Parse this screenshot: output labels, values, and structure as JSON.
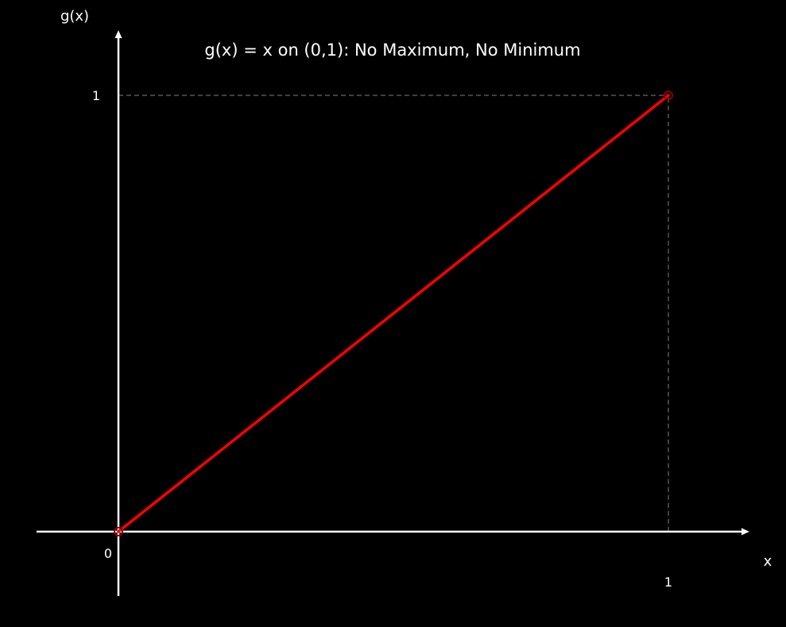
{
  "chart_data": {
    "type": "line",
    "title": "g(x) = x on (0,1): No Maximum, No Minimum",
    "xlabel": "x",
    "ylabel": "g(x)",
    "xlim": [
      -0.15,
      1.15
    ],
    "ylim": [
      -0.15,
      1.13
    ],
    "x_ticks": [
      {
        "value": 1,
        "label": "1"
      }
    ],
    "y_ticks": [
      {
        "value": 1,
        "label": "1"
      }
    ],
    "origin_label": "0",
    "grid": false,
    "series": [
      {
        "x": [
          0,
          1
        ],
        "y": [
          0,
          1
        ],
        "color": "#ff0000",
        "open_endpoints": [
          [
            0,
            0
          ],
          [
            1,
            1
          ]
        ]
      }
    ],
    "reference_lines": [
      {
        "type": "horizontal",
        "y": 1,
        "x_from": 0,
        "x_to": 1,
        "style": "dashed",
        "color": "#555555"
      },
      {
        "type": "vertical",
        "x": 1,
        "y_from": 0,
        "y_to": 1,
        "style": "dashed",
        "color": "#555555"
      }
    ]
  },
  "colors": {
    "background": "#000000",
    "axis": "#ffffff",
    "text": "#ffffff",
    "curve": "#ff0000",
    "open_point": "#8b0000"
  }
}
